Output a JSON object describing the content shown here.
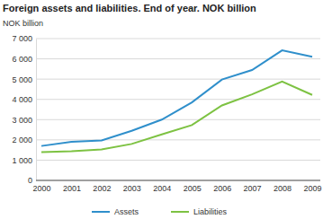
{
  "chart_data": {
    "type": "line",
    "title": "Foreign assets and liabilities. End of year. NOK billion",
    "y_label": "NOK billion",
    "categories": [
      "2000",
      "2001",
      "2002",
      "2003",
      "2004",
      "2005",
      "2006",
      "2007",
      "2008",
      "2009"
    ],
    "series": [
      {
        "name": "Assets",
        "color": "#2f8fcb",
        "values": [
          1700,
          1900,
          1970,
          2450,
          3000,
          3850,
          4980,
          5450,
          6420,
          6100
        ]
      },
      {
        "name": "Liabilities",
        "color": "#7dc242",
        "values": [
          1400,
          1440,
          1530,
          1800,
          2270,
          2730,
          3700,
          4250,
          4880,
          4220
        ]
      }
    ],
    "ylim": [
      0,
      7000
    ],
    "yticks": [
      0,
      {
        "value": 1000,
        "label": "1 000"
      },
      {
        "value": 2000,
        "label": "2 000"
      },
      {
        "value": 3000,
        "label": "3 000"
      },
      {
        "value": 4000,
        "label": "4 000"
      },
      {
        "value": 5000,
        "label": "5 000"
      },
      {
        "value": 6000,
        "label": "6 000"
      },
      {
        "value": 7000,
        "label": "7 000"
      }
    ],
    "grid": true,
    "legend": "bottom"
  }
}
